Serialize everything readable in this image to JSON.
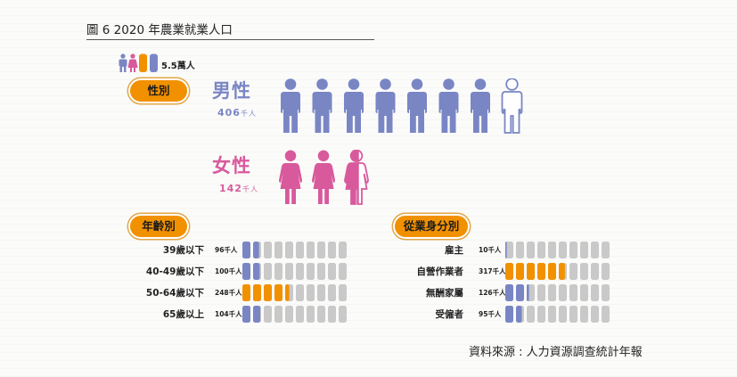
{
  "title": "圖 6 2020 年農業就業人口",
  "source": "資料來源 : 人力資源調查統計年報",
  "legend": {
    "unit_text": "5.5萬人"
  },
  "colors": {
    "male": "#7a86c4",
    "female": "#d85a9c",
    "orange": "#f29100",
    "empty": "#c9c9c9",
    "pill": "#f29100",
    "outline": "#7a86c4",
    "female_outline": "#d85a9c"
  },
  "sections": {
    "gender": "性別",
    "age": "年齡別",
    "status": "從業身分別"
  },
  "gender": {
    "male": {
      "label": "男性",
      "value": "406",
      "unit": "千人"
    },
    "female": {
      "label": "女性",
      "value": "142",
      "unit": "千人"
    }
  },
  "age_rows": [
    {
      "label": "39歲以下",
      "value": "96",
      "unit": "千人"
    },
    {
      "label": "40-49歲以下",
      "value": "100",
      "unit": "千人"
    },
    {
      "label": "50-64歲以下",
      "value": "248",
      "unit": "千人"
    },
    {
      "label": "65歲以上",
      "value": "104",
      "unit": "千人"
    }
  ],
  "status_rows": [
    {
      "label": "雇主",
      "value": "10",
      "unit": "千人"
    },
    {
      "label": "自營作業者",
      "value": "317",
      "unit": "千人"
    },
    {
      "label": "無酬家屬",
      "value": "126",
      "unit": "千人"
    },
    {
      "label": "受僱者",
      "value": "95",
      "unit": "千人"
    }
  ],
  "chart_data": [
    {
      "type": "bar",
      "categories": [
        "男性",
        "女性"
      ],
      "values": [
        406,
        142
      ],
      "unit": "千人",
      "icon_unit": 55
    },
    {
      "type": "bar",
      "categories": [
        "39歲以下",
        "40-49歲以下",
        "50-64歲以下",
        "65歲以上"
      ],
      "values": [
        96,
        100,
        248,
        104
      ],
      "unit": "千人",
      "icon_unit": 55,
      "total_cells": 10
    },
    {
      "type": "bar",
      "categories": [
        "雇主",
        "自營作業者",
        "無酬家屬",
        "受僱者"
      ],
      "values": [
        10,
        317,
        126,
        95
      ],
      "unit": "千人",
      "icon_unit": 55,
      "total_cells": 10
    }
  ]
}
